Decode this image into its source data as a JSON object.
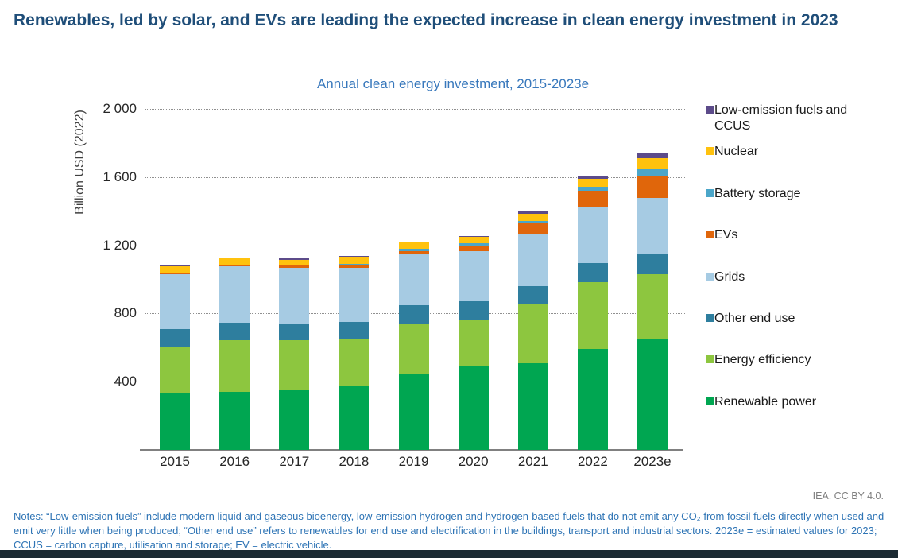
{
  "header": {
    "title": "Renewables, led by solar, and EVs are leading the expected increase in clean energy investment in 2023"
  },
  "chart_data": {
    "type": "bar",
    "stacked": true,
    "title": "Annual clean energy investment, 2015-2023e",
    "xlabel": "",
    "ylabel": "Billion USD (2022)",
    "ylim": [
      0,
      2000
    ],
    "grid": "dotted-horizontal",
    "legend_position": "right",
    "yticks": [
      {
        "value": 400,
        "label": "400"
      },
      {
        "value": 800,
        "label": "800"
      },
      {
        "value": 1200,
        "label": "1 200"
      },
      {
        "value": 1600,
        "label": "1 600"
      },
      {
        "value": 2000,
        "label": "2 000"
      }
    ],
    "categories": [
      "2015",
      "2016",
      "2017",
      "2018",
      "2019",
      "2020",
      "2021",
      "2022",
      "2023e"
    ],
    "series": [
      {
        "name": "Renewable power",
        "color": "#00A651",
        "values": [
          331,
          340,
          350,
          378,
          448,
          489,
          510,
          590,
          655
        ]
      },
      {
        "name": "Energy efficiency",
        "color": "#8DC63F",
        "values": [
          277,
          305,
          295,
          268,
          290,
          273,
          350,
          395,
          377
        ]
      },
      {
        "name": "Other end use",
        "color": "#2E7E9E",
        "values": [
          100,
          100,
          95,
          105,
          111,
          111,
          102,
          110,
          118
        ]
      },
      {
        "name": "Grids",
        "color": "#A6CBE3",
        "values": [
          323,
          330,
          330,
          318,
          296,
          291,
          300,
          330,
          330
        ]
      },
      {
        "name": "EVs",
        "color": "#E0660B",
        "values": [
          5,
          8,
          12,
          18,
          23,
          32,
          65,
          95,
          125
        ]
      },
      {
        "name": "Battery storage",
        "color": "#4BA6C9",
        "values": [
          3,
          4,
          4,
          5,
          12,
          15,
          15,
          25,
          40
        ]
      },
      {
        "name": "Nuclear",
        "color": "#FFC20E",
        "values": [
          38,
          35,
          30,
          42,
          37,
          37,
          45,
          45,
          65
        ]
      },
      {
        "name": "Low-emission fuels and CCUS",
        "color": "#5C4B8A",
        "values": [
          8,
          8,
          8,
          6,
          6,
          8,
          13,
          20,
          30
        ]
      }
    ],
    "totals": [
      1085,
      1130,
      1124,
      1140,
      1223,
      1256,
      1400,
      1610,
      1740
    ]
  },
  "footer": {
    "attribution": "IEA. CC BY 4.0.",
    "notes": "Notes: “Low-emission fuels” include modern liquid and gaseous bioenergy, low-emission hydrogen and hydrogen-based fuels that do not emit any CO₂ from fossil fuels directly when used and emit very little when being produced; “Other end use” refers to renewables for end use and electrification in the buildings, transport and industrial sectors. 2023e = estimated values for 2023; CCUS = carbon capture, utilisation and storage; EV = electric vehicle."
  }
}
